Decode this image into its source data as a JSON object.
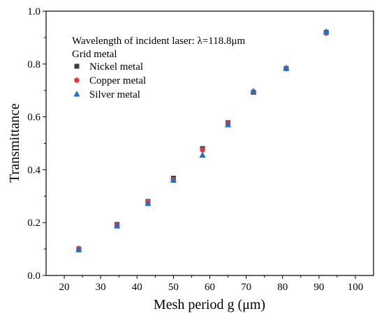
{
  "chart_data": {
    "type": "scatter",
    "xlabel": "Mesh period g (μm)",
    "ylabel": "Transmittance",
    "xlim": [
      15,
      105
    ],
    "ylim": [
      0,
      1.0
    ],
    "xticks": [
      20,
      30,
      40,
      50,
      60,
      70,
      80,
      90,
      100
    ],
    "yticks": [
      0.0,
      0.2,
      0.4,
      0.6,
      0.8,
      1.0
    ],
    "xtick_labels": [
      "20",
      "30",
      "40",
      "50",
      "60",
      "70",
      "80",
      "90",
      "100"
    ],
    "ytick_labels": [
      "0.0",
      "0.2",
      "0.4",
      "0.6",
      "0.8",
      "1.0"
    ],
    "annotation": "Wavelength of incident laser: λ=118.8μm",
    "legend_title": "Grid metal",
    "legend_placement": "top-left",
    "grid": false,
    "series": [
      {
        "name": "Nickel metal",
        "marker": "square",
        "color": "#3c3c3c",
        "x": [
          24,
          34.5,
          43,
          50,
          58,
          65,
          72,
          81,
          92
        ],
        "y": [
          0.1,
          0.193,
          0.28,
          0.368,
          0.48,
          0.578,
          0.693,
          0.783,
          0.92
        ]
      },
      {
        "name": "Copper metal",
        "marker": "circle",
        "color": "#e63a3a",
        "x": [
          24,
          34.5,
          43,
          50,
          58,
          65,
          72,
          81,
          92
        ],
        "y": [
          0.102,
          0.19,
          0.278,
          0.363,
          0.475,
          0.575,
          0.695,
          0.782,
          0.917
        ]
      },
      {
        "name": "Silver metal",
        "marker": "triangle",
        "color": "#1f6fd0",
        "x": [
          24,
          34.5,
          43,
          50,
          58,
          65,
          72,
          81,
          92
        ],
        "y": [
          0.097,
          0.187,
          0.272,
          0.36,
          0.455,
          0.57,
          0.697,
          0.785,
          0.922
        ]
      }
    ]
  }
}
